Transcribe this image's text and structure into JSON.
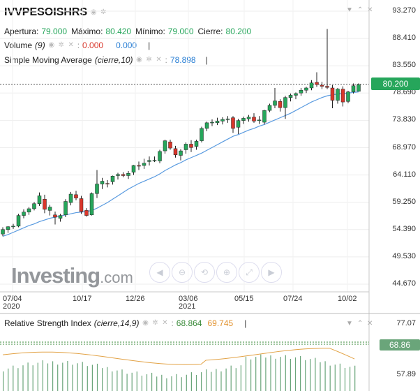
{
  "symbol": "IVVPESOISHRS",
  "ohlc": {
    "open_label": "Apertura:",
    "open": "79.000",
    "high_label": "Máximo:",
    "high": "80.420",
    "low_label": "Mínimo:",
    "low": "79.000",
    "close_label": "Cierre:",
    "close": "80.200"
  },
  "volume": {
    "label": "Volume",
    "params": "(9)",
    "value1": "0.000",
    "value2": "0.000"
  },
  "sma": {
    "label": "Simple Moving Average",
    "params": "(cierre,10)",
    "value": "78.898"
  },
  "price_axis": [
    "93.270",
    "88.410",
    "83.550",
    "78.690",
    "73.830",
    "68.970",
    "64.110",
    "59.250",
    "54.390",
    "49.530",
    "44.670"
  ],
  "current_price": "80.200",
  "time_axis": [
    {
      "label": "07/04",
      "year": "2020"
    },
    {
      "label": "10/17",
      "year": ""
    },
    {
      "label": "12/26",
      "year": ""
    },
    {
      "label": "03/06",
      "year": "2021"
    },
    {
      "label": "05/15",
      "year": ""
    },
    {
      "label": "07/24",
      "year": ""
    },
    {
      "label": "10/02",
      "year": ""
    }
  ],
  "watermark": {
    "brand": "Investing",
    "suffix": ".com"
  },
  "rsi": {
    "label": "Relative Strength Index",
    "params": "(cierre,14,9)",
    "value1": "68.864",
    "value2": "69.745",
    "axis": [
      "77.07",
      "57.89"
    ],
    "current": "68.86"
  },
  "icons": {
    "eye": "eye-icon",
    "gear": "gear-icon",
    "close": "close-icon",
    "collapse": "chevron-down-icon",
    "pin": "pin-icon",
    "remove": "remove-icon"
  },
  "nav_buttons": [
    "scroll-left",
    "zoom-out",
    "zoom-reset",
    "zoom-in",
    "zoom-fit",
    "scroll-right"
  ],
  "colors": {
    "up": "#26a65b",
    "down": "#d9362b",
    "sma": "#2a7fd4",
    "rsi": "#e2922e",
    "rsi_hist": "#6aa57a"
  },
  "chart_data": {
    "type": "candlestick",
    "y_range": [
      44.67,
      93.27
    ],
    "x_labels": [
      "07/04",
      "10/17",
      "12/26",
      "03/06",
      "05/15",
      "07/24",
      "10/02"
    ],
    "candles": [
      [
        53.6,
        54.8,
        53.2,
        54.4
      ],
      [
        54.4,
        55.0,
        53.8,
        54.9
      ],
      [
        54.9,
        55.4,
        54.5,
        55.0
      ],
      [
        55.0,
        57.2,
        54.8,
        56.9
      ],
      [
        56.9,
        58.0,
        56.4,
        57.5
      ],
      [
        57.5,
        58.4,
        57.0,
        58.1
      ],
      [
        58.1,
        59.3,
        57.8,
        59.0
      ],
      [
        59.0,
        61.0,
        58.6,
        60.4
      ],
      [
        59.8,
        60.6,
        57.3,
        58.0
      ],
      [
        57.8,
        58.8,
        56.9,
        58.4
      ],
      [
        57.0,
        57.6,
        55.3,
        56.6
      ],
      [
        56.4,
        57.2,
        55.8,
        56.9
      ],
      [
        57.0,
        59.8,
        56.6,
        59.4
      ],
      [
        59.2,
        61.1,
        58.7,
        60.7
      ],
      [
        60.6,
        61.3,
        59.6,
        60.0
      ],
      [
        59.9,
        60.4,
        57.2,
        57.6
      ],
      [
        57.8,
        58.2,
        56.7,
        56.9
      ],
      [
        57.0,
        61.0,
        56.9,
        60.8
      ],
      [
        60.8,
        65.0,
        60.0,
        62.5
      ],
      [
        62.5,
        63.6,
        61.6,
        63.0
      ],
      [
        62.6,
        63.2,
        61.9,
        62.5
      ],
      [
        62.9,
        64.0,
        62.4,
        63.9
      ],
      [
        64.0,
        64.5,
        63.3,
        64.2
      ],
      [
        64.2,
        64.6,
        63.7,
        64.0
      ],
      [
        64.0,
        64.8,
        63.4,
        64.4
      ],
      [
        64.6,
        65.9,
        64.1,
        65.8
      ],
      [
        65.8,
        66.5,
        65.0,
        65.7
      ],
      [
        65.8,
        67.0,
        65.2,
        66.2
      ],
      [
        66.5,
        67.4,
        65.8,
        66.7
      ],
      [
        66.7,
        67.4,
        66.4,
        66.7
      ],
      [
        66.6,
        68.6,
        66.2,
        68.3
      ],
      [
        68.4,
        70.4,
        67.9,
        70.2
      ],
      [
        70.0,
        70.4,
        68.6,
        68.9
      ],
      [
        68.8,
        69.3,
        67.2,
        67.7
      ],
      [
        67.6,
        68.7,
        66.7,
        68.4
      ],
      [
        68.6,
        69.9,
        67.9,
        69.6
      ],
      [
        69.6,
        70.3,
        68.2,
        69.0
      ],
      [
        69.2,
        70.4,
        68.6,
        70.1
      ],
      [
        70.2,
        72.7,
        69.9,
        72.4
      ],
      [
        72.4,
        73.6,
        71.9,
        73.4
      ],
      [
        73.4,
        74.0,
        72.8,
        73.5
      ],
      [
        73.4,
        74.3,
        73.0,
        73.7
      ],
      [
        73.7,
        74.4,
        73.1,
        74.0
      ],
      [
        74.0,
        74.6,
        73.4,
        74.1
      ],
      [
        74.3,
        74.6,
        71.6,
        72.4
      ],
      [
        72.6,
        74.1,
        71.4,
        73.8
      ],
      [
        73.8,
        74.5,
        73.2,
        74.2
      ],
      [
        74.1,
        74.8,
        73.6,
        74.4
      ],
      [
        74.4,
        75.1,
        73.4,
        73.7
      ],
      [
        73.8,
        74.6,
        73.2,
        73.9
      ],
      [
        73.5,
        75.7,
        73.1,
        75.6
      ],
      [
        75.6,
        76.8,
        75.3,
        76.5
      ],
      [
        76.5,
        79.6,
        76.0,
        77.3
      ],
      [
        77.2,
        77.6,
        75.4,
        76.1
      ],
      [
        76.1,
        78.2,
        74.1,
        77.9
      ],
      [
        77.9,
        78.6,
        77.2,
        78.3
      ],
      [
        78.3,
        78.8,
        77.6,
        78.6
      ],
      [
        78.7,
        79.6,
        78.2,
        79.2
      ],
      [
        79.2,
        79.8,
        78.7,
        79.6
      ],
      [
        79.6,
        81.0,
        79.2,
        80.5
      ],
      [
        80.6,
        82.4,
        79.8,
        80.2
      ],
      [
        80.1,
        80.7,
        79.4,
        79.9
      ],
      [
        79.9,
        90.1,
        79.4,
        79.7
      ],
      [
        79.6,
        80.1,
        76.0,
        77.4
      ],
      [
        77.4,
        79.6,
        76.8,
        79.4
      ],
      [
        79.4,
        79.9,
        76.3,
        77.1
      ],
      [
        77.2,
        79.1,
        76.9,
        78.9
      ],
      [
        78.9,
        80.4,
        78.6,
        80.0
      ],
      [
        79.0,
        80.42,
        79.0,
        80.2
      ]
    ],
    "sma_values": [
      53.2,
      53.5,
      53.9,
      54.3,
      54.7,
      55.1,
      55.4,
      55.8,
      56.1,
      56.4,
      56.6,
      56.8,
      57.0,
      57.2,
      57.4,
      57.5,
      57.6,
      57.8,
      58.2,
      58.7,
      59.2,
      59.8,
      60.4,
      61.0,
      61.6,
      62.1,
      62.6,
      63.0,
      63.4,
      63.8,
      64.3,
      64.9,
      65.4,
      65.9,
      66.3,
      66.8,
      67.2,
      67.6,
      68.0,
      68.5,
      69.0,
      69.5,
      70.0,
      70.5,
      71.0,
      71.3,
      71.7,
      72.1,
      72.4,
      72.8,
      73.1,
      73.5,
      73.9,
      74.3,
      74.7,
      75.1,
      75.6,
      76.1,
      76.6,
      77.1,
      77.5,
      77.9,
      78.2,
      78.4,
      78.5,
      78.6,
      78.7,
      78.8,
      78.898
    ]
  }
}
